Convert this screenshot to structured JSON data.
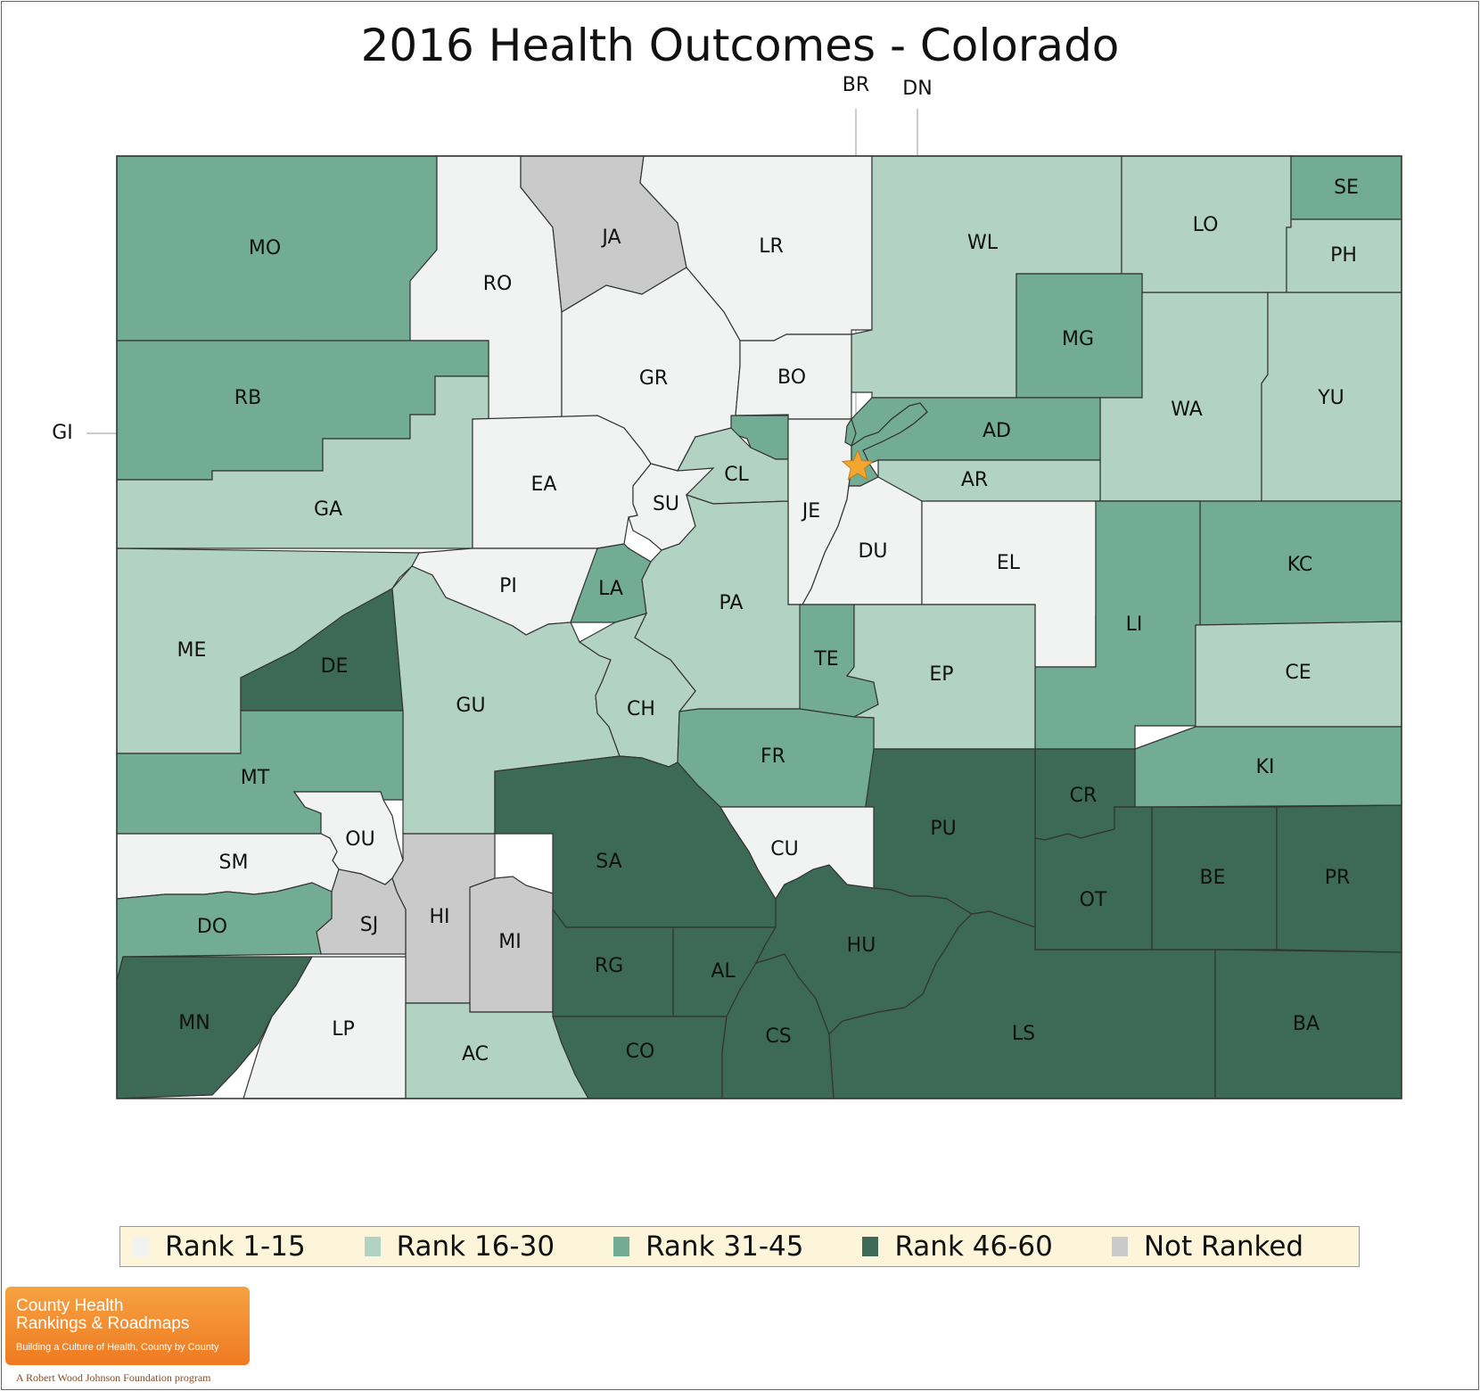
{
  "title": "2016 Health Outcomes - Colorado",
  "colors": {
    "rank_1_15": "#f1f3f2",
    "rank_16_30": "#b2d3c3",
    "rank_31_45": "#72ac94",
    "rank_46_60": "#3d6957",
    "not_ranked": "#cacaca",
    "border": "#333333",
    "star": "#f3a531"
  },
  "legend": [
    {
      "label": "Rank 1-15",
      "color": "#f1f3f2"
    },
    {
      "label": "Rank 16-30",
      "color": "#b2d3c3"
    },
    {
      "label": "Rank 31-45",
      "color": "#72ac94"
    },
    {
      "label": "Rank 46-60",
      "color": "#3d6957"
    },
    {
      "label": "Not Ranked",
      "color": "#cacaca"
    }
  ],
  "counties": [
    {
      "abbr": "MO",
      "category": "rank_31_45"
    },
    {
      "abbr": "RO",
      "category": "rank_1_15"
    },
    {
      "abbr": "JA",
      "category": "not_ranked"
    },
    {
      "abbr": "LR",
      "category": "rank_1_15"
    },
    {
      "abbr": "WL",
      "category": "rank_16_30"
    },
    {
      "abbr": "LO",
      "category": "rank_16_30"
    },
    {
      "abbr": "SE",
      "category": "rank_31_45"
    },
    {
      "abbr": "PH",
      "category": "rank_16_30"
    },
    {
      "abbr": "RB",
      "category": "rank_31_45"
    },
    {
      "abbr": "GR",
      "category": "rank_1_15"
    },
    {
      "abbr": "BO",
      "category": "rank_1_15"
    },
    {
      "abbr": "MG",
      "category": "rank_31_45"
    },
    {
      "abbr": "WA",
      "category": "rank_16_30"
    },
    {
      "abbr": "YU",
      "category": "rank_16_30"
    },
    {
      "abbr": "GI",
      "category": "rank_31_45"
    },
    {
      "abbr": "AD",
      "category": "rank_31_45"
    },
    {
      "abbr": "GA",
      "category": "rank_16_30"
    },
    {
      "abbr": "EA",
      "category": "rank_1_15"
    },
    {
      "abbr": "SU",
      "category": "rank_1_15"
    },
    {
      "abbr": "CL",
      "category": "rank_16_30"
    },
    {
      "abbr": "JE",
      "category": "rank_1_15"
    },
    {
      "abbr": "AR",
      "category": "rank_16_30"
    },
    {
      "abbr": "BR",
      "category": "rank_31_45"
    },
    {
      "abbr": "DN",
      "category": "rank_31_45"
    },
    {
      "abbr": "DU",
      "category": "rank_1_15"
    },
    {
      "abbr": "EL",
      "category": "rank_1_15"
    },
    {
      "abbr": "KC",
      "category": "rank_31_45"
    },
    {
      "abbr": "PI",
      "category": "rank_1_15"
    },
    {
      "abbr": "LA",
      "category": "rank_31_45"
    },
    {
      "abbr": "PA",
      "category": "rank_16_30"
    },
    {
      "abbr": "ME",
      "category": "rank_16_30"
    },
    {
      "abbr": "DE",
      "category": "rank_46_60"
    },
    {
      "abbr": "LI",
      "category": "rank_31_45"
    },
    {
      "abbr": "TE",
      "category": "rank_31_45"
    },
    {
      "abbr": "EP",
      "category": "rank_16_30"
    },
    {
      "abbr": "CE",
      "category": "rank_16_30"
    },
    {
      "abbr": "GU",
      "category": "rank_16_30"
    },
    {
      "abbr": "CH",
      "category": "rank_16_30"
    },
    {
      "abbr": "FR",
      "category": "rank_31_45"
    },
    {
      "abbr": "MT",
      "category": "rank_31_45"
    },
    {
      "abbr": "KI",
      "category": "rank_31_45"
    },
    {
      "abbr": "CR",
      "category": "rank_46_60"
    },
    {
      "abbr": "PU",
      "category": "rank_46_60"
    },
    {
      "abbr": "OU",
      "category": "rank_1_15"
    },
    {
      "abbr": "SA",
      "category": "rank_46_60"
    },
    {
      "abbr": "CU",
      "category": "rank_1_15"
    },
    {
      "abbr": "SM",
      "category": "rank_1_15"
    },
    {
      "abbr": "OT",
      "category": "rank_46_60"
    },
    {
      "abbr": "BE",
      "category": "rank_46_60"
    },
    {
      "abbr": "PR",
      "category": "rank_46_60"
    },
    {
      "abbr": "HI",
      "category": "not_ranked"
    },
    {
      "abbr": "SJ",
      "category": "not_ranked"
    },
    {
      "abbr": "MI",
      "category": "not_ranked"
    },
    {
      "abbr": "DO",
      "category": "rank_31_45"
    },
    {
      "abbr": "HU",
      "category": "rank_46_60"
    },
    {
      "abbr": "RG",
      "category": "rank_46_60"
    },
    {
      "abbr": "AL",
      "category": "rank_46_60"
    },
    {
      "abbr": "MN",
      "category": "rank_46_60"
    },
    {
      "abbr": "LP",
      "category": "rank_1_15"
    },
    {
      "abbr": "AC",
      "category": "rank_16_30"
    },
    {
      "abbr": "CO",
      "category": "rank_46_60"
    },
    {
      "abbr": "CS",
      "category": "rank_46_60"
    },
    {
      "abbr": "LS",
      "category": "rank_46_60"
    },
    {
      "abbr": "BA",
      "category": "rank_46_60"
    }
  ],
  "capital_marker": "star-icon",
  "logo": {
    "line1": "County Health",
    "line2": "Rankings & Roadmaps",
    "tagline": "Building a Culture of Health, County by County",
    "sponsor": "A Robert Wood Johnson Foundation program"
  }
}
